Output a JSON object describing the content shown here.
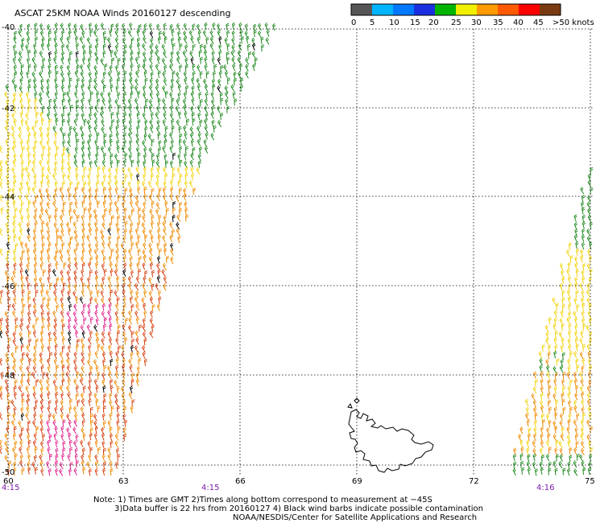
{
  "title": "ASCAT 25KM NOAA Winds 20160127 descending",
  "legend": {
    "labels": [
      "0",
      "5",
      "10",
      "15",
      "20",
      "25",
      "30",
      "35",
      "40",
      "45",
      ">50 knots"
    ],
    "colors": [
      "#555555",
      "#00b4ff",
      "#0078ff",
      "#1a30e0",
      "#00b400",
      "#f0f000",
      "#ff9a00",
      "#ff5a00",
      "#ff0000",
      "#7a3a12",
      "#ff00ff",
      "#b000c8",
      "#6a00a8"
    ]
  },
  "axes": {
    "lat_labels": [
      "-40",
      "-42",
      "-44",
      "-46",
      "-48",
      "-50"
    ],
    "lon_labels": [
      "60",
      "63",
      "66",
      "69",
      "72",
      "75"
    ]
  },
  "times": [
    "4:15",
    "4:15",
    "4:16"
  ],
  "notes": [
    "Note: 1) Times are GMT 2)Times along bottom correspond to measurement at −45S",
    "3)Data buffer is 22 hrs from 20160127 4) Black wind barbs indicate possible contamination",
    "NOAA/NESDIS/Center for Satellite Applications and Research"
  ],
  "swath_colors": {
    "green": "#1f8a1f",
    "yellow": "#f2d20a",
    "orange": "#f08a00",
    "red": "#d84010",
    "magenta": "#e0208a",
    "black": "#000000"
  }
}
